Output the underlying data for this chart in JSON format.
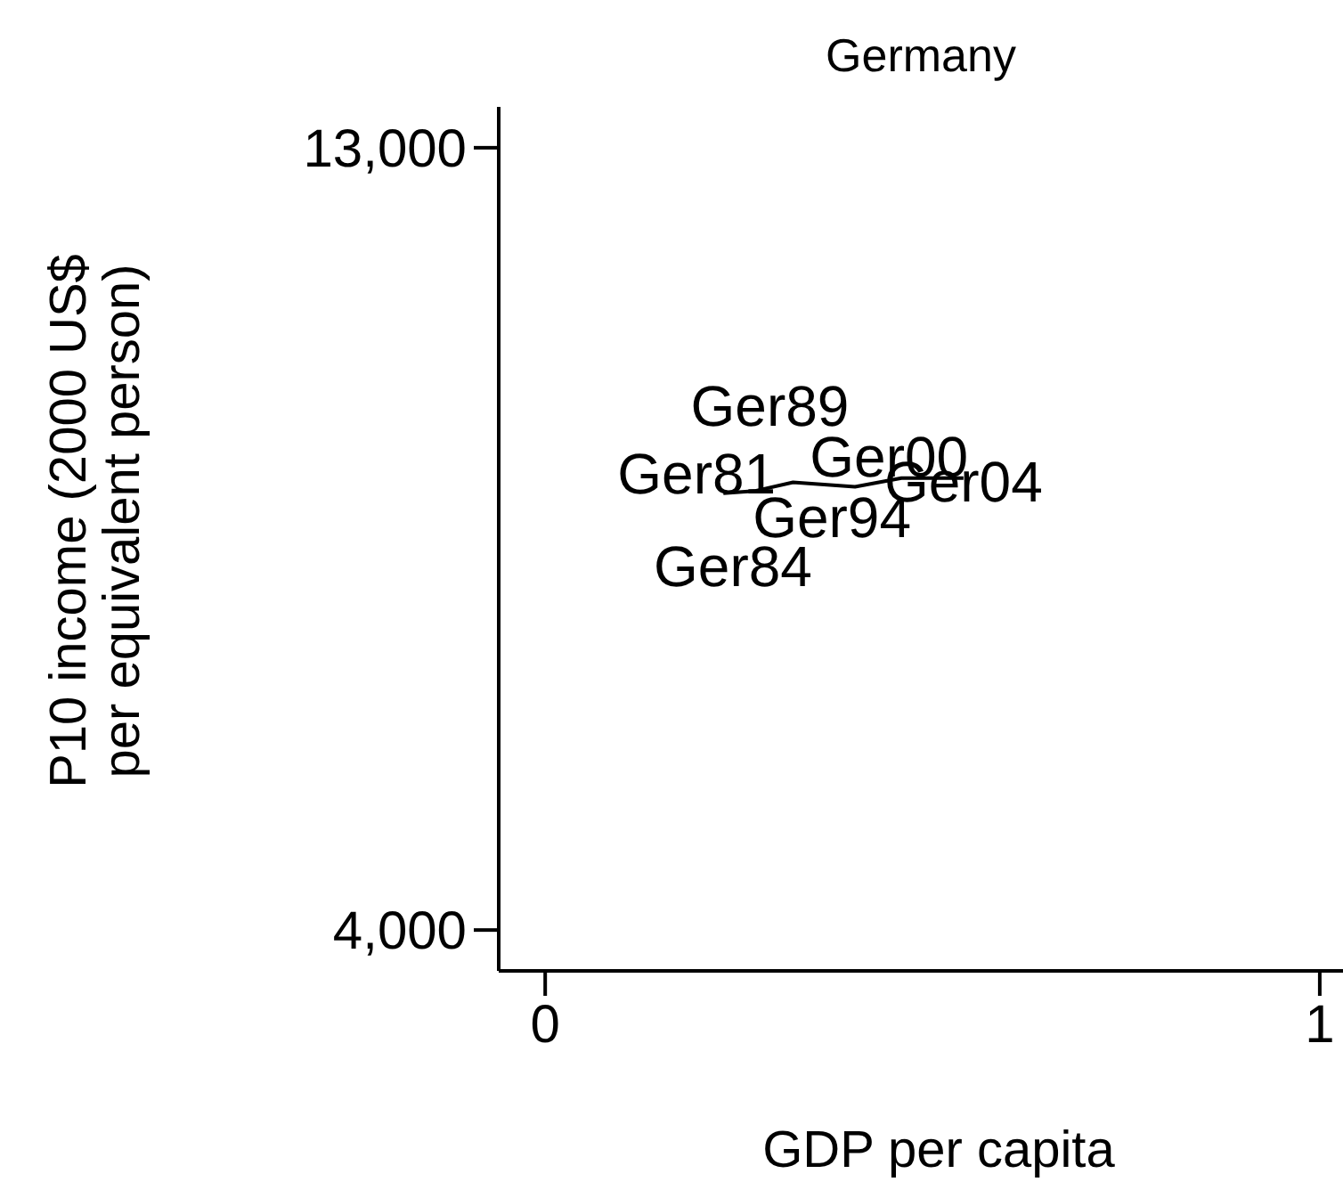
{
  "chart_data": {
    "type": "line",
    "title": "Germany",
    "xlabel": "GDP per capita",
    "ylabel": "P10 income (2000 US$ per equivalent person)",
    "xlim": [
      -0.06,
      1.03
    ],
    "ylim": [
      3530,
      13470
    ],
    "xticks": [
      0,
      1
    ],
    "yticks": [
      {
        "value": 4000,
        "label": "4,000"
      },
      {
        "value": 13000,
        "label": "13,000"
      }
    ],
    "grid": false,
    "marker": "none",
    "series": [
      {
        "color": "#000000",
        "x": [
          0.23,
          0.27,
          0.32,
          0.4,
          0.46,
          0.54
        ],
        "values": [
          9025,
          9050,
          9150,
          9100,
          9200,
          9200
        ]
      }
    ],
    "annotations": [
      {
        "text": "Ger81",
        "x": 0.23,
        "y": 9025
      },
      {
        "text": "Ger84",
        "x": 0.27,
        "y": 9050
      },
      {
        "text": "Ger89",
        "x": 0.32,
        "y": 9150
      },
      {
        "text": "Ger94",
        "x": 0.4,
        "y": 9100
      },
      {
        "text": "Ger00",
        "x": 0.46,
        "y": 9200
      },
      {
        "text": "Ger04",
        "x": 0.54,
        "y": 9200
      }
    ]
  }
}
